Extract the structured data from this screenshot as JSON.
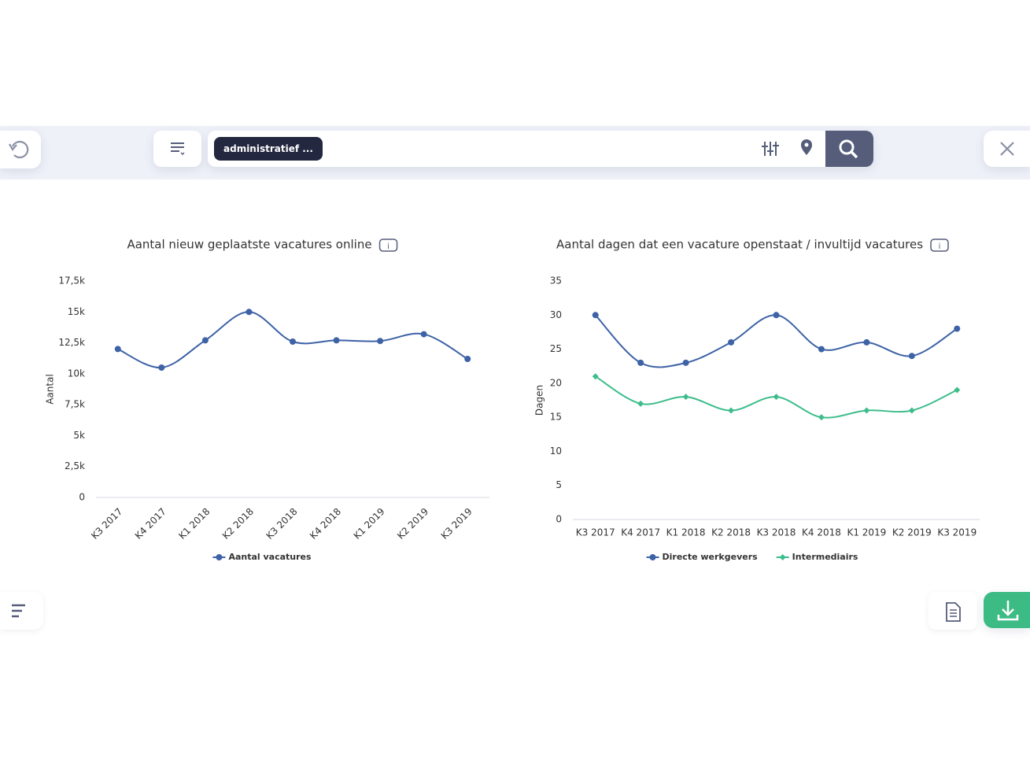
{
  "search": {
    "chip": "administratief ..."
  },
  "info_label": "i",
  "chart_data": [
    {
      "type": "line",
      "title": "Aantal nieuw geplaatste vacatures online",
      "y_label": "Aantal",
      "categories": [
        "K3 2017",
        "K4 2017",
        "K1 2018",
        "K2 2018",
        "K3 2018",
        "K4 2018",
        "K1 2019",
        "K2 2019",
        "K3 2019"
      ],
      "series": [
        {
          "name": "Aantal vacatures",
          "color": "#3d62a6",
          "marker": "circle",
          "values": [
            12000,
            10500,
            12700,
            15000,
            12600,
            12700,
            12650,
            13200,
            11200
          ]
        }
      ],
      "ylim": [
        0,
        17500
      ],
      "yticks": [
        0,
        {
          "value": 2500,
          "label": "2,5k"
        },
        {
          "value": 5000,
          "label": "5k"
        },
        {
          "value": 7500,
          "label": "7,5k"
        },
        {
          "value": 10000,
          "label": "10k"
        },
        {
          "value": 12500,
          "label": "12,5k"
        },
        {
          "value": 15000,
          "label": "15k"
        },
        {
          "value": 17500,
          "label": "17,5k"
        }
      ],
      "grid": false,
      "rotate_x_labels": true
    },
    {
      "type": "line",
      "title": "Aantal dagen dat een vacature openstaat / invultijd vacatures",
      "y_label": "Dagen",
      "categories": [
        "K3 2017",
        "K4 2017",
        "K1 2018",
        "K2 2018",
        "K3 2018",
        "K4 2018",
        "K1 2019",
        "K2 2019",
        "K3 2019"
      ],
      "series": [
        {
          "name": "Directe werkgevers",
          "color": "#3d62a6",
          "marker": "circle",
          "values": [
            30,
            23,
            23,
            26,
            30,
            25,
            26,
            24,
            28
          ]
        },
        {
          "name": "Intermediairs",
          "color": "#3dbd8b",
          "marker": "diamond",
          "values": [
            21,
            17,
            18,
            16,
            18,
            15,
            16,
            16,
            19
          ]
        }
      ],
      "ylim": [
        0,
        35
      ],
      "yticks": [
        0,
        5,
        10,
        15,
        20,
        25,
        30,
        35
      ],
      "grid": false,
      "rotate_x_labels": false
    }
  ]
}
